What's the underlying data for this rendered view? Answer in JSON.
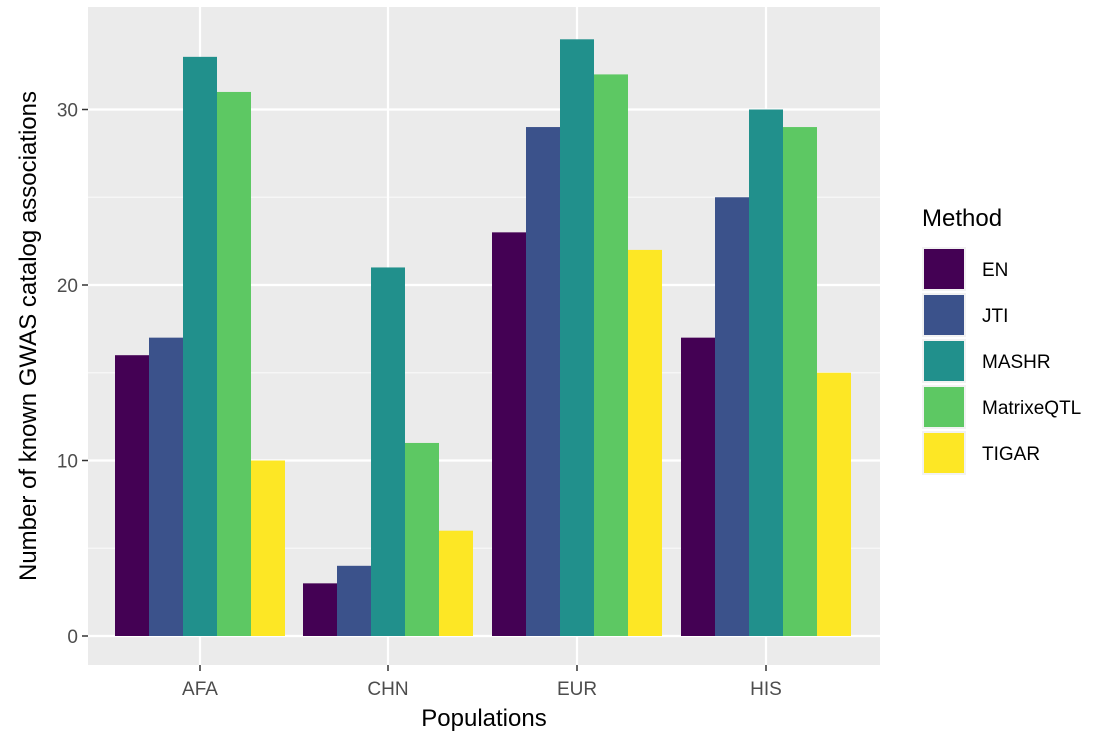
{
  "chart_data": {
    "type": "bar",
    "title": "",
    "xlabel": "Populations",
    "ylabel": "Number of known GWAS catalog associations",
    "categories": [
      "AFA",
      "CHN",
      "EUR",
      "HIS"
    ],
    "ylim": [
      0,
      35
    ],
    "yticks": [
      0,
      10,
      20,
      30
    ],
    "grid": true,
    "legend_title": "Method",
    "legend_position": "right",
    "series": [
      {
        "name": "EN",
        "color": "#440154",
        "values": [
          16,
          3,
          23,
          17
        ]
      },
      {
        "name": "JTI",
        "color": "#3B528B",
        "values": [
          17,
          4,
          29,
          25
        ]
      },
      {
        "name": "MASHR",
        "color": "#21908C",
        "values": [
          33,
          21,
          34,
          30
        ]
      },
      {
        "name": "MatrixeQTL",
        "color": "#5DC863",
        "values": [
          31,
          11,
          32,
          29
        ]
      },
      {
        "name": "TIGAR",
        "color": "#FDE725",
        "values": [
          10,
          6,
          22,
          15
        ]
      }
    ]
  }
}
